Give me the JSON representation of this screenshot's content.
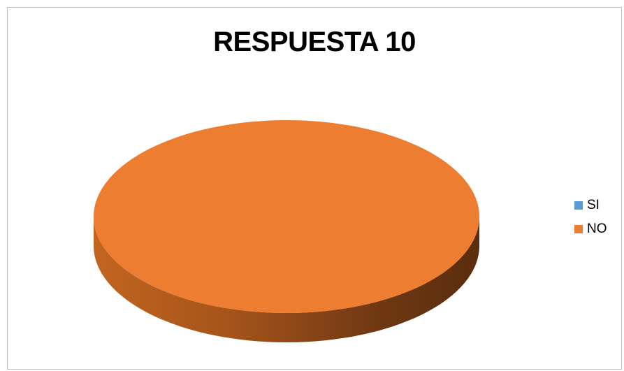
{
  "chart_data": {
    "type": "pie",
    "title": "RESPUESTA 10",
    "categories": [
      "SI",
      "NO"
    ],
    "values": [
      0,
      100
    ],
    "colors": [
      "#5b9bd5",
      "#ed7d31"
    ],
    "legend_position": "right",
    "three_d": true
  }
}
